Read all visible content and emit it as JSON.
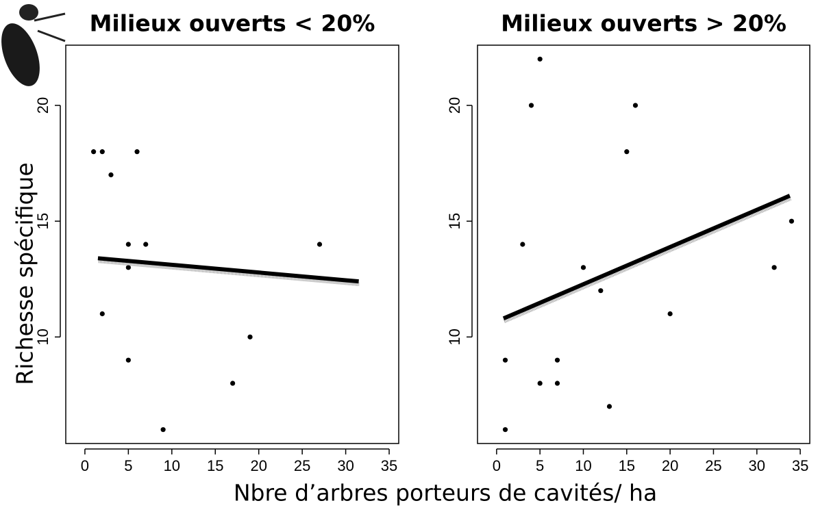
{
  "chart_data": [
    {
      "type": "scatter",
      "title": "Milieux ouverts < 20%",
      "color": "#000000",
      "x": [
        1,
        2,
        3,
        6,
        5,
        7,
        5,
        2,
        5,
        9,
        17,
        19,
        27
      ],
      "values": [
        18,
        18,
        17,
        18,
        14,
        14,
        13,
        11,
        9,
        6,
        8,
        10,
        14
      ],
      "fit": {
        "x": [
          1.5,
          31.5
        ],
        "values": [
          13.4,
          12.4
        ]
      },
      "xlim": [
        -2.2,
        36.1
      ],
      "ylim": [
        5.4,
        22.6
      ],
      "xticks": [
        0,
        5,
        10,
        15,
        20,
        25,
        30,
        35
      ],
      "yticks": [
        10,
        15,
        20
      ]
    },
    {
      "type": "scatter",
      "title": "Milieux ouverts > 20%",
      "color": "#000000",
      "x": [
        1,
        1,
        3,
        4,
        5,
        5,
        7,
        7,
        10,
        12,
        13,
        15,
        16,
        20,
        32,
        34
      ],
      "values": [
        6,
        9,
        14,
        20,
        22,
        8,
        9,
        8,
        13,
        12,
        7,
        18,
        20,
        11,
        13,
        15
      ],
      "fit": {
        "x": [
          0.8,
          33.8
        ],
        "values": [
          10.8,
          16.1
        ]
      },
      "xlim": [
        -2.2,
        36.1
      ],
      "ylim": [
        5.4,
        22.6
      ],
      "xticks": [
        0,
        5,
        10,
        15,
        20,
        25,
        30,
        35
      ],
      "yticks": [
        10,
        15,
        20
      ]
    }
  ],
  "ylabel": "Richesse spécifique",
  "xlabel": "Nbre d’arbres porteurs de cavités/ ha"
}
